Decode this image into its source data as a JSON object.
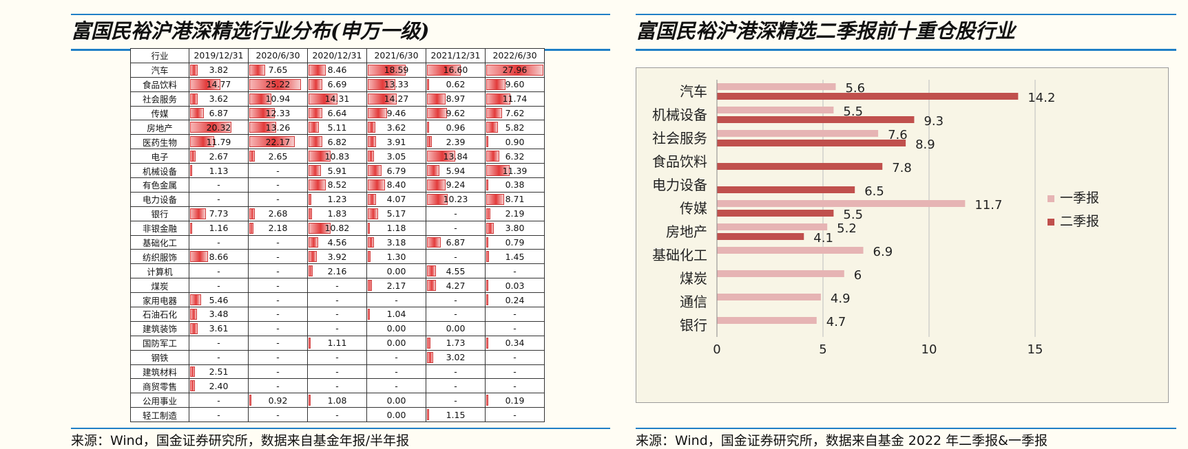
{
  "left_panel": {
    "title": "富国民裕沪港深精选行业分布(申万一级)",
    "source": "来源：Wind，国金证券研究所，数据来自基金年报/半年报"
  },
  "right_panel": {
    "title": "富国民裕沪港深精选二季报前十重仓股行业",
    "source": "来源：Wind，国金证券研究所，数据来自基金 2022 年二季报&一季报"
  },
  "chart_data": [
    {
      "type": "table",
      "header": [
        "行业",
        "2019/12/31",
        "2020/6/30",
        "2020/12/31",
        "2021/6/30",
        "2021/12/31",
        "2022/6/30"
      ],
      "rows": [
        [
          "汽车",
          "3.82",
          "7.65",
          "8.46",
          "18.59",
          "16.60",
          "27.96"
        ],
        [
          "食品饮料",
          "14.77",
          "25.22",
          "6.69",
          "13.33",
          "0.62",
          "9.60"
        ],
        [
          "社会服务",
          "3.62",
          "10.94",
          "14.31",
          "14.27",
          "8.97",
          "11.74"
        ],
        [
          "传媒",
          "6.87",
          "12.33",
          "6.64",
          "9.46",
          "9.62",
          "7.62"
        ],
        [
          "房地产",
          "20.32",
          "13.26",
          "5.11",
          "3.62",
          "0.96",
          "5.82"
        ],
        [
          "医药生物",
          "11.79",
          "22.17",
          "6.82",
          "3.91",
          "2.39",
          "0.90"
        ],
        [
          "电子",
          "2.67",
          "2.65",
          "10.83",
          "3.05",
          "13.84",
          "6.32"
        ],
        [
          "机械设备",
          "1.13",
          "-",
          "5.91",
          "6.79",
          "5.94",
          "11.39"
        ],
        [
          "有色金属",
          "-",
          "-",
          "8.52",
          "8.40",
          "9.24",
          "0.38"
        ],
        [
          "电力设备",
          "-",
          "-",
          "1.23",
          "4.07",
          "10.23",
          "8.71"
        ],
        [
          "银行",
          "7.73",
          "2.68",
          "1.83",
          "5.17",
          "-",
          "2.19"
        ],
        [
          "非银金融",
          "1.16",
          "2.18",
          "10.82",
          "1.18",
          "-",
          "3.80"
        ],
        [
          "基础化工",
          "-",
          "-",
          "4.56",
          "3.18",
          "6.87",
          "0.79"
        ],
        [
          "纺织服饰",
          "8.66",
          "-",
          "3.92",
          "1.30",
          "-",
          "1.45"
        ],
        [
          "计算机",
          "-",
          "-",
          "2.16",
          "0.00",
          "4.55",
          "-"
        ],
        [
          "煤炭",
          "-",
          "-",
          "-",
          "2.17",
          "4.27",
          "0.03"
        ],
        [
          "家用电器",
          "5.46",
          "-",
          "-",
          "-",
          "-",
          "0.24"
        ],
        [
          "石油石化",
          "3.48",
          "-",
          "-",
          "1.04",
          "-",
          "-"
        ],
        [
          "建筑装饰",
          "3.61",
          "-",
          "-",
          "0.00",
          "0.00",
          "-"
        ],
        [
          "国防军工",
          "-",
          "-",
          "1.11",
          "0.00",
          "1.73",
          "0.34"
        ],
        [
          "钢铁",
          "-",
          "-",
          "-",
          "-",
          "3.02",
          "-"
        ],
        [
          "建筑材料",
          "2.51",
          "-",
          "-",
          "-",
          "-",
          "-"
        ],
        [
          "商贸零售",
          "2.40",
          "-",
          "-",
          "-",
          "-",
          "-"
        ],
        [
          "公用事业",
          "-",
          "0.92",
          "1.08",
          "0.00",
          "-",
          "0.19"
        ],
        [
          "轻工制造",
          "-",
          "-",
          "-",
          "0.00",
          "1.15",
          "-"
        ]
      ],
      "bar_max": 28,
      "bar_color": "#e23a3a"
    },
    {
      "type": "bar",
      "orientation": "horizontal",
      "categories": [
        "汽车",
        "机械设备",
        "社会服务",
        "食品饮料",
        "电力设备",
        "传媒",
        "房地产",
        "基础化工",
        "煤炭",
        "通信",
        "银行"
      ],
      "series": [
        {
          "name": "一季报",
          "color": "#e6b4b4",
          "values": [
            5.6,
            5.5,
            7.6,
            null,
            null,
            11.7,
            5.2,
            6.9,
            6.0,
            4.9,
            4.7
          ]
        },
        {
          "name": "二季报",
          "color": "#c0504d",
          "values": [
            14.2,
            9.3,
            8.9,
            7.8,
            6.5,
            5.5,
            4.1,
            null,
            null,
            null,
            null
          ]
        }
      ],
      "xlim": [
        0,
        15
      ],
      "xticks": [
        0,
        5,
        10,
        15
      ],
      "grid": true,
      "legend": "right"
    }
  ]
}
